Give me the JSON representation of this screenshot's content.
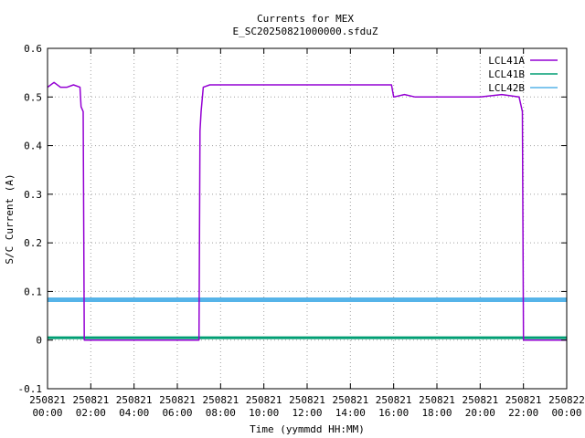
{
  "chart_data": {
    "type": "line",
    "title": "Currents for MEX",
    "subtitle": "E_SC20250821000000.sfduZ",
    "xlabel": "Time (yymmdd HH:MM)",
    "ylabel": "S/C Current (A)",
    "x_unit": "hours since 250821 00:00",
    "xlim": [
      0,
      24
    ],
    "ylim": [
      -0.1,
      0.6
    ],
    "grid": true,
    "legend_position": "top-right",
    "x_ticks": [
      {
        "date": "250821",
        "time": "00:00"
      },
      {
        "date": "250821",
        "time": "02:00"
      },
      {
        "date": "250821",
        "time": "04:00"
      },
      {
        "date": "250821",
        "time": "06:00"
      },
      {
        "date": "250821",
        "time": "08:00"
      },
      {
        "date": "250821",
        "time": "10:00"
      },
      {
        "date": "250821",
        "time": "12:00"
      },
      {
        "date": "250821",
        "time": "14:00"
      },
      {
        "date": "250821",
        "time": "16:00"
      },
      {
        "date": "250821",
        "time": "18:00"
      },
      {
        "date": "250821",
        "time": "20:00"
      },
      {
        "date": "250821",
        "time": "22:00"
      },
      {
        "date": "250822",
        "time": "00:00"
      }
    ],
    "y_ticks": [
      "-0.1",
      "0",
      "0.1",
      "0.2",
      "0.3",
      "0.4",
      "0.5",
      "0.6"
    ],
    "series": [
      {
        "name": "LCL41A",
        "color": "#9400d3",
        "x": [
          0,
          0.3,
          0.6,
          0.9,
          1.2,
          1.5,
          1.55,
          1.65,
          1.7,
          2,
          3,
          4,
          5,
          6,
          6.9,
          7.0,
          7.05,
          7.1,
          7.2,
          7.5,
          8,
          9,
          10,
          11,
          12,
          13,
          14,
          15,
          15.9,
          16.0,
          16.5,
          17,
          18,
          19,
          20,
          21,
          21.8,
          21.9,
          21.95,
          22.0,
          22.1,
          23,
          24
        ],
        "y": [
          0.52,
          0.53,
          0.52,
          0.52,
          0.525,
          0.52,
          0.48,
          0.47,
          0.0,
          0.0,
          0.0,
          0.0,
          0.0,
          0.0,
          0.0,
          0.0,
          0.43,
          0.47,
          0.52,
          0.525,
          0.525,
          0.525,
          0.525,
          0.525,
          0.525,
          0.525,
          0.525,
          0.525,
          0.525,
          0.5,
          0.505,
          0.5,
          0.5,
          0.5,
          0.5,
          0.505,
          0.5,
          0.48,
          0.47,
          0.0,
          0.0,
          0.0,
          0.0
        ]
      },
      {
        "name": "LCL41B",
        "color": "#009e73",
        "x": [
          0,
          24
        ],
        "y": [
          0.005,
          0.005
        ]
      },
      {
        "name": "LCL42B",
        "color": "#56b4e9",
        "x": [
          0,
          24
        ],
        "y": [
          0.083,
          0.083
        ]
      }
    ]
  }
}
